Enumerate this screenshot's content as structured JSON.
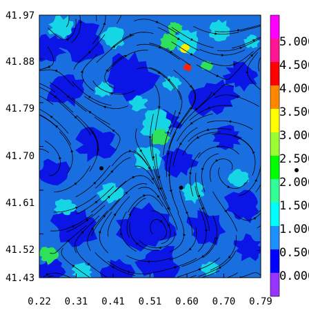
{
  "chart_data": {
    "type": "heatmap",
    "title": "",
    "xlabel": "",
    "ylabel": "",
    "x_ticks": [
      "0.22",
      "0.31",
      "0.41",
      "0.51",
      "0.60",
      "0.70",
      "0.79"
    ],
    "y_ticks": [
      "41.97",
      "41.88",
      "41.79",
      "41.70",
      "41.61",
      "41.52",
      "41.43"
    ],
    "xlim": [
      0.22,
      0.79
    ],
    "ylim": [
      41.43,
      41.97
    ],
    "overlay": "streamlines",
    "colorbar": {
      "labels": [
        "5.000",
        "4.500",
        "4.000",
        "3.500",
        "3.000",
        "2.500",
        "2.000",
        "1.500",
        "1.000",
        "0.500",
        "0.000"
      ],
      "bands": [
        "#ff00ff",
        "#ff1493",
        "#ff0000",
        "#ff8800",
        "#ffff00",
        "#99ff33",
        "#00ff00",
        "#33ff99",
        "#00ffff",
        "#1e90ff",
        "#0000ff",
        "#9933ff"
      ]
    },
    "markers": [
      {
        "x": 0.38,
        "y": 41.655
      },
      {
        "x": 0.585,
        "y": 41.615
      }
    ],
    "palette": {
      "background": "#1a6fe0",
      "low": "#0b16e6",
      "mid": "#16d6e6",
      "high": "#2fe05a",
      "peak": "#ffee00",
      "hot": "#ff2200"
    }
  }
}
